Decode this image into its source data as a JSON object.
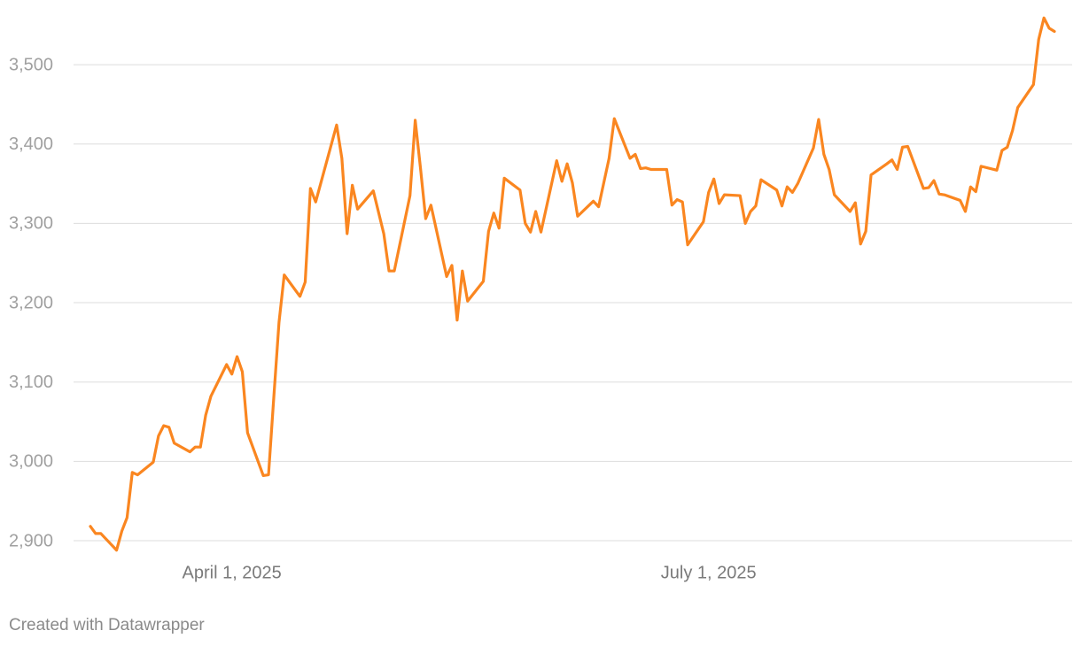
{
  "chart_data": {
    "type": "line",
    "color": "#fa8620",
    "grid": true,
    "footer": "Created with Datawrapper",
    "x": [
      "2025-03-05",
      "2025-03-06",
      "2025-03-07",
      "2025-03-10",
      "2025-03-11",
      "2025-03-12",
      "2025-03-13",
      "2025-03-14",
      "2025-03-17",
      "2025-03-18",
      "2025-03-19",
      "2025-03-20",
      "2025-03-21",
      "2025-03-24",
      "2025-03-25",
      "2025-03-26",
      "2025-03-27",
      "2025-03-28",
      "2025-03-31",
      "2025-04-01",
      "2025-04-02",
      "2025-04-03",
      "2025-04-04",
      "2025-04-07",
      "2025-04-08",
      "2025-04-09",
      "2025-04-10",
      "2025-04-11",
      "2025-04-14",
      "2025-04-15",
      "2025-04-16",
      "2025-04-17",
      "2025-04-21",
      "2025-04-22",
      "2025-04-23",
      "2025-04-24",
      "2025-04-25",
      "2025-04-28",
      "2025-04-30",
      "2025-05-01",
      "2025-05-02",
      "2025-05-05",
      "2025-05-06",
      "2025-05-07",
      "2025-05-08",
      "2025-05-09",
      "2025-05-12",
      "2025-05-13",
      "2025-05-14",
      "2025-05-15",
      "2025-05-16",
      "2025-05-19",
      "2025-05-20",
      "2025-05-21",
      "2025-05-22",
      "2025-05-23",
      "2025-05-26",
      "2025-05-27",
      "2025-05-28",
      "2025-05-29",
      "2025-05-30",
      "2025-06-02",
      "2025-06-03",
      "2025-06-04",
      "2025-06-05",
      "2025-06-06",
      "2025-06-09",
      "2025-06-10",
      "2025-06-12",
      "2025-06-13",
      "2025-06-16",
      "2025-06-17",
      "2025-06-18",
      "2025-06-19",
      "2025-06-20",
      "2025-06-23",
      "2025-06-24",
      "2025-06-25",
      "2025-06-26",
      "2025-06-27",
      "2025-06-30",
      "2025-07-01",
      "2025-07-02",
      "2025-07-03",
      "2025-07-04",
      "2025-07-07",
      "2025-07-08",
      "2025-07-09",
      "2025-07-10",
      "2025-07-11",
      "2025-07-14",
      "2025-07-15",
      "2025-07-16",
      "2025-07-17",
      "2025-07-18",
      "2025-07-21",
      "2025-07-22",
      "2025-07-23",
      "2025-07-24",
      "2025-07-25",
      "2025-07-28",
      "2025-07-29",
      "2025-07-30",
      "2025-07-31",
      "2025-08-01",
      "2025-08-04",
      "2025-08-05",
      "2025-08-06",
      "2025-08-07",
      "2025-08-08",
      "2025-08-11",
      "2025-08-12",
      "2025-08-13",
      "2025-08-14",
      "2025-08-15",
      "2025-08-18",
      "2025-08-19",
      "2025-08-20",
      "2025-08-21",
      "2025-08-22",
      "2025-08-25",
      "2025-08-26",
      "2025-08-27",
      "2025-08-28",
      "2025-08-29",
      "2025-09-01",
      "2025-09-02",
      "2025-09-03",
      "2025-09-04",
      "2025-09-05"
    ],
    "values": [
      2918,
      2909,
      2909,
      2888,
      2912,
      2929,
      2986,
      2983,
      2999,
      3032,
      3045,
      3043,
      3023,
      3012,
      3018,
      3018,
      3058,
      3082,
      3122,
      3110,
      3132,
      3113,
      3036,
      2982,
      2983,
      3080,
      3175,
      3235,
      3208,
      3226,
      3344,
      3327,
      3424,
      3382,
      3287,
      3348,
      3318,
      3341,
      3287,
      3240,
      3240,
      3335,
      3430,
      3370,
      3306,
      3323,
      3233,
      3247,
      3178,
      3240,
      3202,
      3227,
      3290,
      3313,
      3294,
      3357,
      3342,
      3300,
      3289,
      3315,
      3289,
      3379,
      3353,
      3375,
      3351,
      3309,
      3328,
      3321,
      3382,
      3432,
      3382,
      3387,
      3369,
      3370,
      3368,
      3368,
      3323,
      3330,
      3327,
      3273,
      3302,
      3339,
      3356,
      3325,
      3336,
      3335,
      3300,
      3315,
      3322,
      3355,
      3342,
      3322,
      3346,
      3339,
      3350,
      3395,
      3431,
      3387,
      3368,
      3336,
      3315,
      3326,
      3274,
      3290,
      3361,
      3375,
      3380,
      3368,
      3396,
      3397,
      3344,
      3345,
      3354,
      3337,
      3336,
      3329,
      3315,
      3346,
      3340,
      3372,
      3367,
      3392,
      3396,
      3417,
      3446,
      3475,
      3532,
      3559,
      3546,
      3542
    ],
    "xlim": [
      "2025-03-05",
      "2025-09-05"
    ],
    "xticks": [
      {
        "value": "2025-04-01",
        "label": "April 1, 2025"
      },
      {
        "value": "2025-07-01",
        "label": "July 1, 2025"
      }
    ],
    "ylim": [
      2880,
      3570
    ],
    "yticks": [
      {
        "value": 2900,
        "label": "2,900"
      },
      {
        "value": 3000,
        "label": "3,000"
      },
      {
        "value": 3100,
        "label": "3,100"
      },
      {
        "value": 3200,
        "label": "3,200"
      },
      {
        "value": 3300,
        "label": "3,300"
      },
      {
        "value": 3400,
        "label": "3,400"
      },
      {
        "value": 3500,
        "label": "3,500"
      }
    ]
  }
}
